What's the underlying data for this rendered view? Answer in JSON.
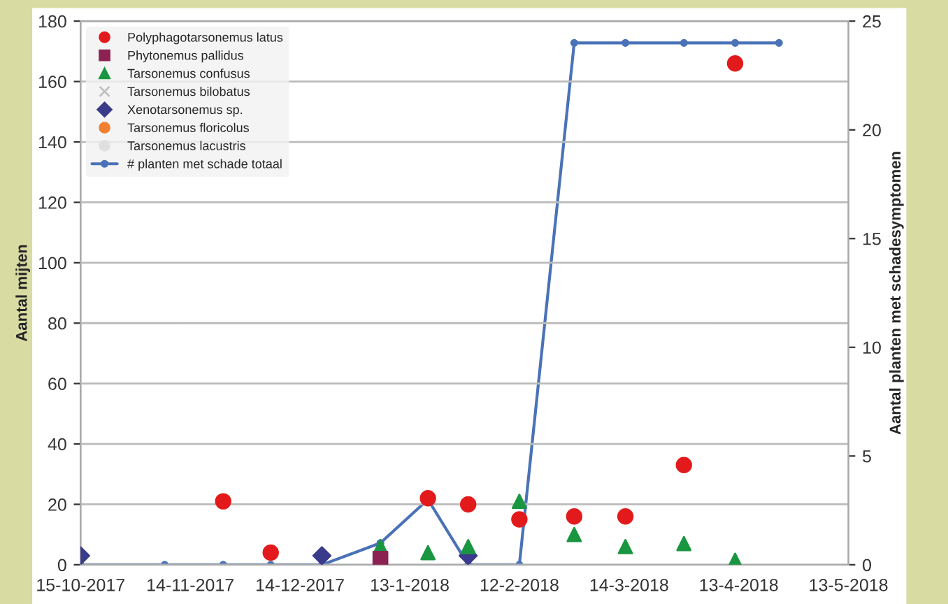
{
  "chart_data": {
    "type": "scatter",
    "ylabel": "Aantal mijten",
    "y2label": "Aantal planten met schadesymptomen",
    "x": [
      "2017-10-15",
      "2017-11-07",
      "2017-11-23",
      "2017-12-06",
      "2017-12-20",
      "2018-01-05",
      "2018-01-18",
      "2018-01-29",
      "2018-02-12",
      "2018-02-27",
      "2018-03-13",
      "2018-03-29",
      "2018-04-12",
      "2018-04-24"
    ],
    "series": [
      {
        "name": "Polyphagotarsonemus latus",
        "color": "#e31a1c",
        "marker": "circle",
        "values": [
          null,
          null,
          21,
          4,
          null,
          null,
          22,
          20,
          15,
          16,
          16,
          33,
          166,
          null
        ]
      },
      {
        "name": "Phytonemus pallidus",
        "color": "#8b2252",
        "marker": "square",
        "values": [
          null,
          null,
          null,
          null,
          null,
          2,
          null,
          null,
          null,
          null,
          null,
          null,
          null,
          null
        ]
      },
      {
        "name": "Tarsonemus confusus",
        "color": "#1a9641",
        "marker": "triangle",
        "values": [
          null,
          null,
          null,
          null,
          null,
          6,
          4,
          6,
          21,
          10,
          6,
          7,
          1.5,
          null
        ]
      },
      {
        "name": "Tarsonemus bilobatus",
        "color": "#c0c0c0",
        "marker": "cross",
        "values": [
          null,
          null,
          null,
          null,
          null,
          null,
          null,
          null,
          null,
          null,
          null,
          null,
          null,
          null
        ]
      },
      {
        "name": "Xenotarsonemus sp.",
        "color": "#3b3b8c",
        "marker": "diamond",
        "values": [
          3,
          null,
          null,
          null,
          3,
          null,
          null,
          3,
          null,
          null,
          null,
          null,
          null,
          null
        ]
      },
      {
        "name": "Tarsonemus floricolus",
        "color": "#f08030",
        "marker": "circle",
        "values": [
          null,
          null,
          null,
          null,
          null,
          null,
          null,
          null,
          null,
          null,
          null,
          null,
          null,
          null
        ]
      },
      {
        "name": "Tarsonemus lacustris",
        "color": "#e0e0e0",
        "marker": "circle",
        "values": [
          null,
          null,
          null,
          null,
          null,
          null,
          null,
          null,
          null,
          null,
          null,
          null,
          null,
          null
        ]
      },
      {
        "name": "# planten met schade totaal",
        "type": "line",
        "axis": "y2",
        "color": "#4a72b8",
        "marker": "circle",
        "line_style": "solid",
        "values": [
          0,
          0,
          0,
          0,
          0,
          1,
          3,
          0,
          0,
          24,
          24,
          24,
          24,
          24
        ]
      }
    ],
    "xlim": [
      "2017-10-15",
      "2018-05-13"
    ],
    "xticks": [
      {
        "value": "2017-10-15",
        "label": "15-10-2017"
      },
      {
        "value": "2017-11-14",
        "label": "14-11-2017"
      },
      {
        "value": "2017-12-14",
        "label": "14-12-2017"
      },
      {
        "value": "2018-01-13",
        "label": "13-1-2018"
      },
      {
        "value": "2018-02-12",
        "label": "12-2-2018"
      },
      {
        "value": "2018-03-14",
        "label": "14-3-2018"
      },
      {
        "value": "2018-04-13",
        "label": "13-4-2018"
      },
      {
        "value": "2018-05-13",
        "label": "13-5-2018"
      }
    ],
    "ylim": [
      0,
      180
    ],
    "yticks": [
      0,
      20,
      40,
      60,
      80,
      100,
      120,
      140,
      160,
      180
    ],
    "y2lim": [
      0,
      25
    ],
    "y2ticks": [
      0,
      5,
      10,
      15,
      20,
      25
    ],
    "grid": "y",
    "legend": "top left"
  }
}
